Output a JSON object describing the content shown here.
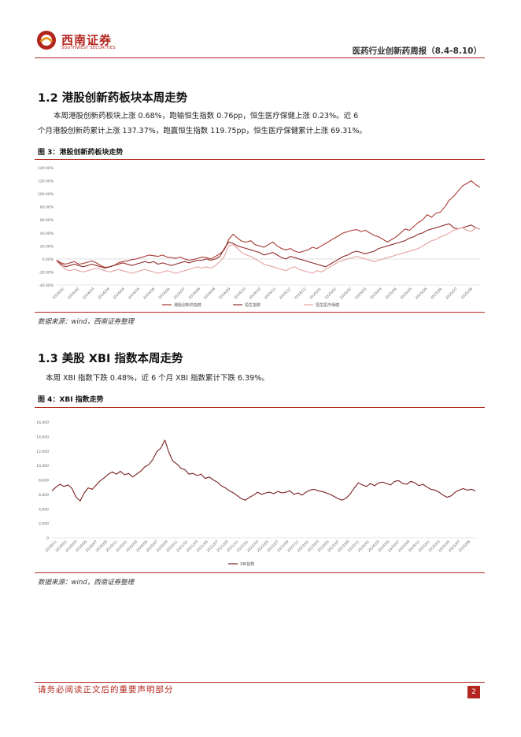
{
  "header": {
    "logo_cn": "西南证券",
    "logo_en": "SOUTHWEST SECURITIES",
    "report_title": "医药行业创新药周报（8.4-8.10）"
  },
  "section_12": {
    "title": "1.2 港股创新药板块本周走势",
    "para_line1": "本周港股创新药板块上涨 0.68%，跑输恒生指数 0.76pp，恒生医疗保健上涨 0.23%。近  6",
    "para_line2": "个月港股创新药累计上涨 137.37%，跑赢恒生指数 119.75pp，恒生医疗保健累计上涨 69.31%。",
    "figure_caption": "图 3：港股创新药板块走势",
    "source": "数据来源：wind，西南证券整理"
  },
  "section_13": {
    "title": "1.3 美股 XBI 指数本周走势",
    "para_line1": "本周 XBI 指数下跌 0.48%，近 6 个月 XBI 指数累计下跌 6.39%。",
    "figure_caption": "图 4：XBI 指数走势",
    "source": "数据来源：wind，西南证券整理"
  },
  "footer": {
    "note": "请务必阅读正文后的重要声明部分",
    "page": "2"
  },
  "colors": {
    "brand_red": "#b3261e",
    "series_hk_innov": "#a83a32",
    "series_hsi": "#8f2a2a",
    "series_hshc": "#e6a0a0",
    "series_xbi": "#7a1f1f"
  },
  "chart_data": [
    {
      "type": "line",
      "ylim": [
        -40,
        140
      ],
      "yticks": [
        "140.00%",
        "120.00%",
        "100.00%",
        "80.00%",
        "60.00%",
        "40.00%",
        "20.00%",
        "0.00%",
        "-20.00%",
        "-40.00%"
      ],
      "ytick_values": [
        140,
        120,
        100,
        80,
        60,
        40,
        20,
        0,
        -20,
        -40
      ],
      "grid": false,
      "legend_position": "bottom",
      "series": [
        {
          "name": "港股创新药指数",
          "values": [
            -2,
            -6,
            -8,
            -6,
            -4,
            -8,
            -7,
            -5,
            -3,
            -6,
            -10,
            -13,
            -12,
            -10,
            -6,
            -4,
            -3,
            -1,
            0,
            2,
            4,
            6,
            5,
            4,
            6,
            3,
            2,
            1,
            3,
            0,
            -2,
            -1,
            1,
            3,
            2,
            0,
            4,
            8,
            14,
            30,
            38,
            32,
            27,
            26,
            28,
            22,
            20,
            18,
            22,
            26,
            20,
            16,
            14,
            16,
            12,
            10,
            12,
            14,
            18,
            16,
            20,
            24,
            28,
            32,
            36,
            40,
            42,
            44,
            45,
            42,
            44,
            40,
            36,
            34,
            30,
            26,
            30,
            34,
            40,
            46,
            44,
            50,
            56,
            60,
            68,
            64,
            70,
            72,
            80,
            90,
            96,
            104,
            112,
            116,
            120,
            114,
            110
          ]
        },
        {
          "name": "恒生指数",
          "values": [
            -2,
            -8,
            -12,
            -10,
            -8,
            -10,
            -12,
            -10,
            -8,
            -10,
            -12,
            -14,
            -12,
            -10,
            -8,
            -6,
            -8,
            -10,
            -8,
            -6,
            -4,
            -6,
            -4,
            -8,
            -6,
            -8,
            -10,
            -8,
            -6,
            -4,
            -6,
            -4,
            -2,
            -2,
            0,
            -2,
            0,
            4,
            16,
            26,
            24,
            20,
            18,
            16,
            14,
            12,
            10,
            6,
            8,
            10,
            6,
            2,
            0,
            4,
            2,
            0,
            -2,
            -4,
            -6,
            -8,
            -10,
            -12,
            -8,
            -4,
            0,
            4,
            6,
            10,
            12,
            10,
            8,
            10,
            12,
            16,
            18,
            20,
            22,
            24,
            26,
            28,
            32,
            34,
            38,
            40,
            44,
            46,
            48,
            50,
            52,
            54,
            48,
            46,
            48,
            50,
            52,
            48,
            46
          ]
        },
        {
          "name": "恒生医疗保健",
          "values": [
            -4,
            -10,
            -16,
            -18,
            -16,
            -18,
            -20,
            -18,
            -16,
            -14,
            -16,
            -18,
            -20,
            -18,
            -16,
            -18,
            -20,
            -22,
            -20,
            -18,
            -16,
            -18,
            -20,
            -22,
            -20,
            -18,
            -20,
            -22,
            -20,
            -18,
            -16,
            -14,
            -12,
            -14,
            -12,
            -14,
            -10,
            -4,
            4,
            20,
            22,
            16,
            10,
            6,
            4,
            0,
            -4,
            -8,
            -10,
            -12,
            -14,
            -16,
            -18,
            -14,
            -12,
            -16,
            -18,
            -20,
            -22,
            -18,
            -20,
            -16,
            -12,
            -8,
            -4,
            -2,
            0,
            2,
            4,
            2,
            0,
            -2,
            -4,
            -2,
            0,
            2,
            4,
            6,
            8,
            10,
            12,
            14,
            16,
            20,
            24,
            28,
            30,
            34,
            36,
            40,
            44,
            46,
            48,
            44,
            42,
            48,
            46
          ]
        }
      ]
    },
    {
      "type": "line",
      "ylim": [
        0,
        16000
      ],
      "yticks": [
        "16,000",
        "14,000",
        "12,000",
        "10,000",
        "8,000",
        "6,000",
        "4,000",
        "2,000",
        "0"
      ],
      "ytick_values": [
        16000,
        14000,
        12000,
        10000,
        8000,
        6000,
        4000,
        2000,
        0
      ],
      "grid": false,
      "legend_position": "bottom",
      "series": [
        {
          "name": "XBI指数",
          "values": [
            6500,
            7000,
            7400,
            7100,
            7300,
            6800,
            5600,
            5100,
            6200,
            6900,
            6700,
            7300,
            7900,
            8300,
            8800,
            9100,
            8800,
            9200,
            8700,
            8900,
            8400,
            8800,
            9200,
            9800,
            10100,
            10800,
            11900,
            12400,
            13500,
            11800,
            10600,
            10200,
            9600,
            9400,
            8800,
            8900,
            8600,
            8800,
            8200,
            8400,
            8000,
            7700,
            7200,
            6900,
            6500,
            6200,
            5800,
            5400,
            5200,
            5600,
            5900,
            6300,
            6000,
            6200,
            6300,
            6100,
            6400,
            6200,
            6300,
            6500,
            6000,
            6200,
            5900,
            6300,
            6600,
            6700,
            6500,
            6400,
            6200,
            6000,
            5700,
            5400,
            5200,
            5500,
            6100,
            6900,
            7600,
            7300,
            7100,
            7500,
            7200,
            7600,
            7700,
            7500,
            7300,
            7800,
            7900,
            7500,
            7400,
            7800,
            7600,
            7200,
            7400,
            7000,
            6700,
            6600,
            6300,
            5900,
            5600,
            5800,
            6300,
            6600,
            6800,
            6600,
            6700,
            6500
          ]
        }
      ]
    }
  ],
  "chart3_xticks": [
    "2024/02",
    "2024/02",
    "2024/03",
    "2024/04",
    "2024/04",
    "2024/05",
    "2024/06",
    "2024/06",
    "2024/07",
    "2024/08",
    "2024/08",
    "2024/09",
    "2024/10",
    "2024/10",
    "2024/11",
    "2024/12",
    "2024/12",
    "2025/01",
    "2025/02",
    "2025/02",
    "2025/03",
    "2025/04",
    "2025/04",
    "2025/05",
    "2025/06",
    "2025/06",
    "2025/07",
    "2025/08"
  ],
  "chart4_xticks": [
    "2018/11",
    "2019/01",
    "2019/03",
    "2019/05",
    "2019/07",
    "2019/09",
    "2019/11",
    "2020/01",
    "2020/03",
    "2020/05",
    "2020/07",
    "2020/09",
    "2020/11",
    "2021/01",
    "2021/03",
    "2021/05",
    "2021/07",
    "2021/09",
    "2021/11",
    "2022/01",
    "2022/03",
    "2022/05",
    "2022/07",
    "2022/09",
    "2022/11",
    "2023/01",
    "2023/03",
    "2023/05",
    "2023/07",
    "2023/09",
    "2023/11",
    "2024/01",
    "2024/03",
    "2024/05",
    "2024/07",
    "2024/09",
    "2024/11",
    "2025/01",
    "2025/03",
    "2025/05",
    "2025/07",
    "2025/08"
  ]
}
